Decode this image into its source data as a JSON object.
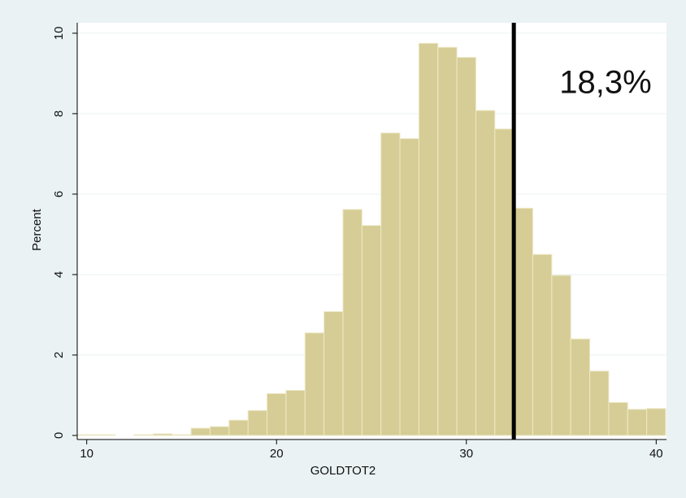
{
  "chart_data": {
    "type": "histogram",
    "x_label": "GOLDTOT2",
    "y_label": "Percent",
    "bins": [
      9.5,
      10.5,
      11.5,
      12.5,
      13.5,
      14.5,
      15.5,
      16.5,
      17.5,
      18.5,
      19.5,
      20.5,
      21.5,
      22.5,
      23.5,
      24.5,
      25.5,
      26.5,
      27.5,
      28.5,
      29.5,
      30.5,
      31.5,
      32.5,
      33.5,
      34.5,
      35.5,
      36.5,
      37.5,
      38.5,
      39.5,
      40.5
    ],
    "values": [
      0.02,
      0.02,
      0,
      0.02,
      0.04,
      0.02,
      0.18,
      0.22,
      0.38,
      0.62,
      1.04,
      1.12,
      2.55,
      3.08,
      5.62,
      5.22,
      7.52,
      7.38,
      9.75,
      9.65,
      9.4,
      8.08,
      7.62,
      5.65,
      4.5,
      3.98,
      2.4,
      1.6,
      0.82,
      0.65,
      0.67
    ],
    "color": "#d6cd96",
    "xlim": [
      9.5,
      40.5
    ],
    "xticks": [
      10,
      20,
      30,
      40
    ],
    "ylim": [
      0,
      10.2
    ],
    "yticks": [
      0,
      2,
      4,
      6,
      8,
      10
    ],
    "grid": true,
    "reference_line": 32.5,
    "annotation": "18,3%"
  }
}
